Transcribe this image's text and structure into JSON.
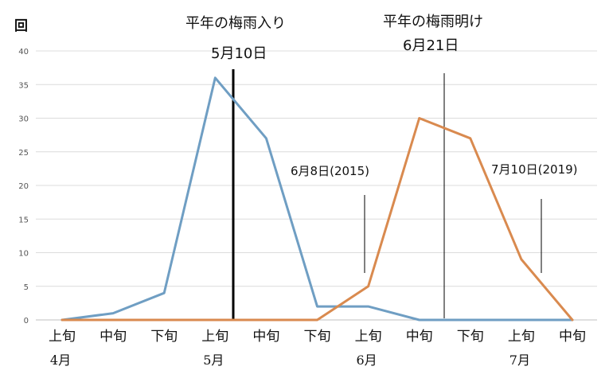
{
  "chart_data": {
    "type": "line",
    "ylabel": "回",
    "ylim": [
      0,
      40
    ],
    "yticks": [
      0,
      5,
      10,
      15,
      20,
      25,
      30,
      35,
      40
    ],
    "grid": true,
    "categories": [
      "上旬",
      "中旬",
      "下旬",
      "上旬",
      "中旬",
      "下旬",
      "上旬",
      "中旬",
      "下旬",
      "上旬",
      "中旬"
    ],
    "months": [
      {
        "label": "4月",
        "category_index": 0
      },
      {
        "label": "5月",
        "category_index": 3
      },
      {
        "label": "6月",
        "category_index": 6
      },
      {
        "label": "7月",
        "category_index": 9
      }
    ],
    "series": [
      {
        "values": [
          0,
          1,
          4,
          36,
          27,
          2,
          2,
          0,
          0,
          0,
          0
        ],
        "color": "#6f9ec3"
      },
      {
        "values": [
          0,
          0,
          0,
          0,
          0,
          0,
          5,
          30,
          27,
          9,
          0
        ],
        "color": "#d98a4f"
      }
    ],
    "annotations": {
      "rainy_start_title": "平年の梅雨入り",
      "rainy_start_date": "5月10日",
      "rainy_end_title": "平年の梅雨明け",
      "rainy_end_date": "6月21日",
      "note_2015": "6月8日(2015)",
      "note_2019": "7月10日(2019)"
    }
  }
}
